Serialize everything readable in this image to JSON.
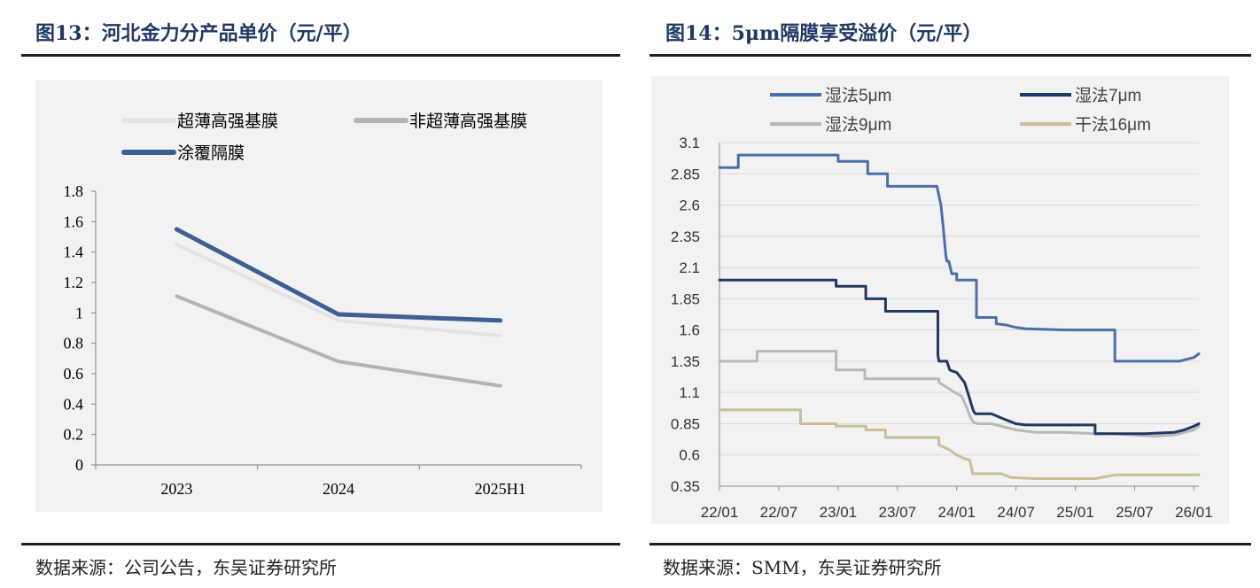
{
  "left": {
    "title": "图13：河北金力分产品单价（元/平）",
    "source": "数据来源：公司公告，东吴证券研究所",
    "chart_data": {
      "type": "line",
      "title": "河北金力分产品单价（元/平）",
      "categories": [
        "2023",
        "2024",
        "2025H1"
      ],
      "ylim": [
        0,
        1.8
      ],
      "yticks": [
        "1.8",
        "1.6",
        "1.4",
        "1.2",
        "1",
        "0.8",
        "0.6",
        "0.4",
        "0.2",
        "0"
      ],
      "ytick_values": [
        1.8,
        1.6,
        1.4,
        1.2,
        1.0,
        0.8,
        0.6,
        0.4,
        0.2,
        0
      ],
      "series": [
        {
          "name": "超薄高强基膜",
          "color": "#e3e3e3",
          "values": [
            1.45,
            0.95,
            0.85
          ]
        },
        {
          "name": "非超薄高强基膜",
          "color": "#b3b3b3",
          "values": [
            1.11,
            0.68,
            0.52
          ]
        },
        {
          "name": "涂覆隔膜",
          "color": "#3d5f94",
          "values": [
            1.55,
            0.99,
            0.95
          ]
        }
      ]
    }
  },
  "right": {
    "title": "图14：5μm隔膜享受溢价（元/平）",
    "source": "数据来源：SMM，东吴证券研究所",
    "chart_data": {
      "type": "line",
      "title": "5μm隔膜享受溢价（元/平）",
      "xlim": [
        0,
        48.5
      ],
      "xticks": [
        "22/01",
        "22/07",
        "23/01",
        "23/07",
        "24/01",
        "24/07",
        "25/01",
        "25/07",
        "26/01"
      ],
      "xtick_values": [
        0,
        6,
        12,
        18,
        24,
        30,
        36,
        42,
        48
      ],
      "x_unit": "months since 2022/01",
      "ylim": [
        0.35,
        3.1
      ],
      "yticks": [
        "3.1",
        "2.85",
        "2.6",
        "2.35",
        "2.1",
        "1.85",
        "1.6",
        "1.35",
        "1.1",
        "0.85",
        "0.6",
        "0.35"
      ],
      "ytick_values": [
        3.1,
        2.85,
        2.6,
        2.35,
        2.1,
        1.85,
        1.6,
        1.35,
        1.1,
        0.85,
        0.6,
        0.35
      ],
      "grid": true,
      "series": [
        {
          "name": "湿法5μm",
          "color": "#4a6fa8",
          "x": [
            0,
            1.9,
            1.9,
            12,
            12,
            12.1,
            12.1,
            15,
            15,
            17,
            17,
            22,
            22,
            22.4,
            22.6,
            22.9,
            23,
            23.2,
            23.5,
            24,
            24,
            26,
            26,
            28,
            28,
            29,
            29.5,
            30,
            31,
            35,
            40,
            40,
            43,
            45,
            46.5,
            48,
            48.5
          ],
          "y": [
            2.9,
            2.9,
            3.0,
            3.0,
            2.95,
            2.95,
            2.95,
            2.95,
            2.85,
            2.85,
            2.75,
            2.75,
            2.75,
            2.6,
            2.45,
            2.2,
            2.15,
            2.15,
            2.05,
            2.05,
            2.0,
            2.0,
            1.7,
            1.7,
            1.65,
            1.64,
            1.63,
            1.62,
            1.61,
            1.6,
            1.6,
            1.35,
            1.35,
            1.35,
            1.35,
            1.38,
            1.41
          ]
        },
        {
          "name": "湿法7μm",
          "color": "#1f3864",
          "x": [
            0,
            11.8,
            11.8,
            14.8,
            14.8,
            16.8,
            16.8,
            22.1,
            22.1,
            22.2,
            23,
            23.3,
            23.6,
            24,
            24.4,
            24.8,
            25.2,
            25.5,
            25.7,
            25.9,
            26.2,
            27.5,
            29,
            30,
            31,
            35,
            38,
            38,
            40,
            43,
            46,
            47,
            48,
            48.5
          ],
          "y": [
            2.0,
            2.0,
            1.95,
            1.95,
            1.85,
            1.85,
            1.75,
            1.75,
            1.4,
            1.35,
            1.35,
            1.28,
            1.27,
            1.26,
            1.22,
            1.18,
            1.08,
            1.0,
            0.95,
            0.93,
            0.93,
            0.93,
            0.88,
            0.85,
            0.84,
            0.84,
            0.84,
            0.77,
            0.77,
            0.77,
            0.78,
            0.8,
            0.83,
            0.85
          ]
        },
        {
          "name": "湿法9μm",
          "color": "#b8b8b8",
          "x": [
            0,
            3.8,
            3.8,
            11.8,
            11.8,
            14.7,
            14.7,
            22.2,
            22.2,
            23.2,
            23.8,
            24.5,
            25,
            25.4,
            25.7,
            26.2,
            27.5,
            29,
            30,
            32,
            35,
            38,
            40,
            42,
            44,
            46,
            48,
            48.5
          ],
          "y": [
            1.35,
            1.35,
            1.43,
            1.43,
            1.28,
            1.28,
            1.21,
            1.21,
            1.18,
            1.13,
            1.1,
            1.07,
            0.98,
            0.9,
            0.86,
            0.85,
            0.85,
            0.82,
            0.8,
            0.78,
            0.78,
            0.77,
            0.77,
            0.76,
            0.75,
            0.76,
            0.8,
            0.83
          ]
        },
        {
          "name": "干法16μm",
          "color": "#c8bf96",
          "x": [
            0,
            8.2,
            8.2,
            11.8,
            11.8,
            14.8,
            14.8,
            16.8,
            16.8,
            22.2,
            22.2,
            23.3,
            24,
            24.8,
            25.3,
            25.5,
            25.6,
            28.5,
            29.5,
            32,
            36,
            38,
            40,
            48.5
          ],
          "y": [
            0.96,
            0.96,
            0.85,
            0.85,
            0.83,
            0.83,
            0.8,
            0.8,
            0.74,
            0.74,
            0.68,
            0.64,
            0.6,
            0.57,
            0.56,
            0.5,
            0.45,
            0.45,
            0.42,
            0.41,
            0.41,
            0.41,
            0.44,
            0.44
          ]
        }
      ]
    }
  }
}
